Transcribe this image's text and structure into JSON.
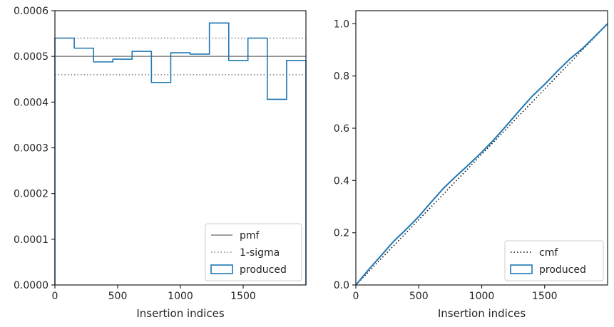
{
  "chart_data": [
    {
      "type": "step",
      "xlabel": "Insertion indices",
      "ylabel": "",
      "xlim": [
        0,
        2000
      ],
      "ylim": [
        0,
        0.0006
      ],
      "xticks": [
        0,
        500,
        1000,
        1500
      ],
      "xtick_labels": [
        "0",
        "500",
        "1000",
        "1500"
      ],
      "yticks": [
        0,
        0.0001,
        0.0002,
        0.0003,
        0.0004,
        0.0005,
        0.0006
      ],
      "ytick_labels": [
        "0.0000",
        "0.0001",
        "0.0002",
        "0.0003",
        "0.0004",
        "0.0005",
        "0.0006"
      ],
      "hlines": [
        {
          "name": "pmf",
          "y": 0.0005,
          "style": "solid",
          "color": "#808080"
        },
        {
          "name": "1-sigma",
          "y": 0.00054,
          "style": "dotted",
          "color": "#808080"
        },
        {
          "name": "1-sigma",
          "y": 0.00046,
          "style": "dotted",
          "color": "#808080"
        }
      ],
      "histogram": {
        "name": "produced",
        "color": "#1f77b4",
        "bin_edges": [
          0,
          154,
          308,
          462,
          615,
          769,
          923,
          1077,
          1231,
          1385,
          1538,
          1692,
          1846,
          2000
        ],
        "values": [
          0.00054,
          0.000518,
          0.000488,
          0.000494,
          0.000511,
          0.000443,
          0.000508,
          0.000505,
          0.000573,
          0.000491,
          0.00054,
          0.000406,
          0.000491
        ]
      },
      "legend": {
        "position": "lower right",
        "entries": [
          {
            "label": "pmf",
            "kind": "solid-line",
            "color": "#808080"
          },
          {
            "label": "1-sigma",
            "kind": "dotted-line",
            "color": "#808080"
          },
          {
            "label": "produced",
            "kind": "patch",
            "color": "#1f77b4"
          }
        ]
      }
    },
    {
      "type": "line",
      "xlabel": "Insertion indices",
      "ylabel": "",
      "xlim": [
        0,
        2000
      ],
      "ylim": [
        0,
        1.05
      ],
      "xticks": [
        0,
        500,
        1000,
        1500
      ],
      "xtick_labels": [
        "0",
        "500",
        "1000",
        "1500"
      ],
      "yticks": [
        0,
        0.2,
        0.4,
        0.6,
        0.8,
        1.0
      ],
      "ytick_labels": [
        "0.0",
        "0.2",
        "0.4",
        "0.6",
        "0.8",
        "1.0"
      ],
      "series": [
        {
          "name": "cmf",
          "style": "dotted",
          "color": "#000000",
          "x": [
            0,
            2000
          ],
          "y": [
            0,
            1.0
          ]
        },
        {
          "name": "produced",
          "style": "solid",
          "color": "#1f77b4",
          "x": [
            0,
            100,
            200,
            300,
            400,
            500,
            600,
            700,
            800,
            900,
            1000,
            1100,
            1200,
            1300,
            1400,
            1500,
            1600,
            1700,
            1800,
            1900,
            2000
          ],
          "y": [
            0,
            0.058,
            0.112,
            0.167,
            0.213,
            0.262,
            0.318,
            0.372,
            0.418,
            0.462,
            0.508,
            0.558,
            0.612,
            0.668,
            0.722,
            0.768,
            0.818,
            0.865,
            0.905,
            0.952,
            1.0
          ]
        }
      ],
      "legend": {
        "position": "lower right",
        "entries": [
          {
            "label": "cmf",
            "kind": "dotted-line",
            "color": "#000000"
          },
          {
            "label": "produced",
            "kind": "patch",
            "color": "#1f77b4"
          }
        ]
      }
    }
  ]
}
